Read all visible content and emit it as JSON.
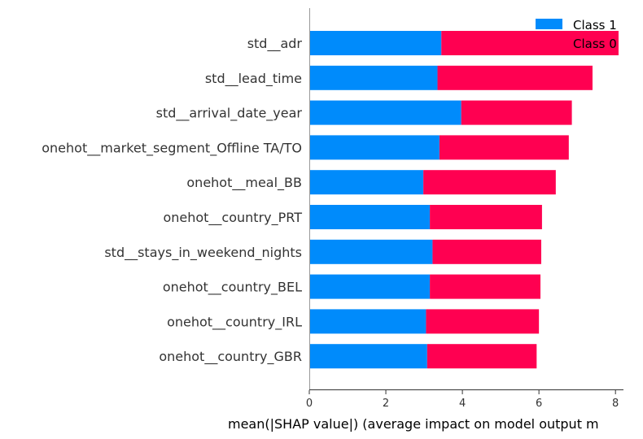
{
  "chart_data": {
    "type": "bar",
    "orientation": "horizontal",
    "stacked": true,
    "categories": [
      "std__adr",
      "std__lead_time",
      "std__arrival_date_year",
      "onehot__market_segment_Offline TA/TO",
      "onehot__meal_BB",
      "onehot__country_PRT",
      "std__stays_in_weekend_nights",
      "onehot__country_BEL",
      "onehot__country_IRL",
      "onehot__country_GBR"
    ],
    "series": [
      {
        "name": "Class 1",
        "color": "#008bfb",
        "values": [
          3.45,
          3.35,
          3.97,
          3.4,
          2.98,
          3.15,
          3.22,
          3.15,
          3.05,
          3.08
        ]
      },
      {
        "name": "Class 0",
        "color": "#ff0051",
        "values": [
          4.63,
          4.05,
          2.89,
          3.38,
          3.46,
          2.93,
          2.84,
          2.89,
          2.95,
          2.86
        ]
      }
    ],
    "xlabel": "mean(|SHAP value|) (average impact on model output m",
    "xticks": [
      0,
      2,
      4,
      6,
      8
    ],
    "xlim": [
      0,
      8.4
    ],
    "legend_position": "top-right",
    "grid": false
  }
}
